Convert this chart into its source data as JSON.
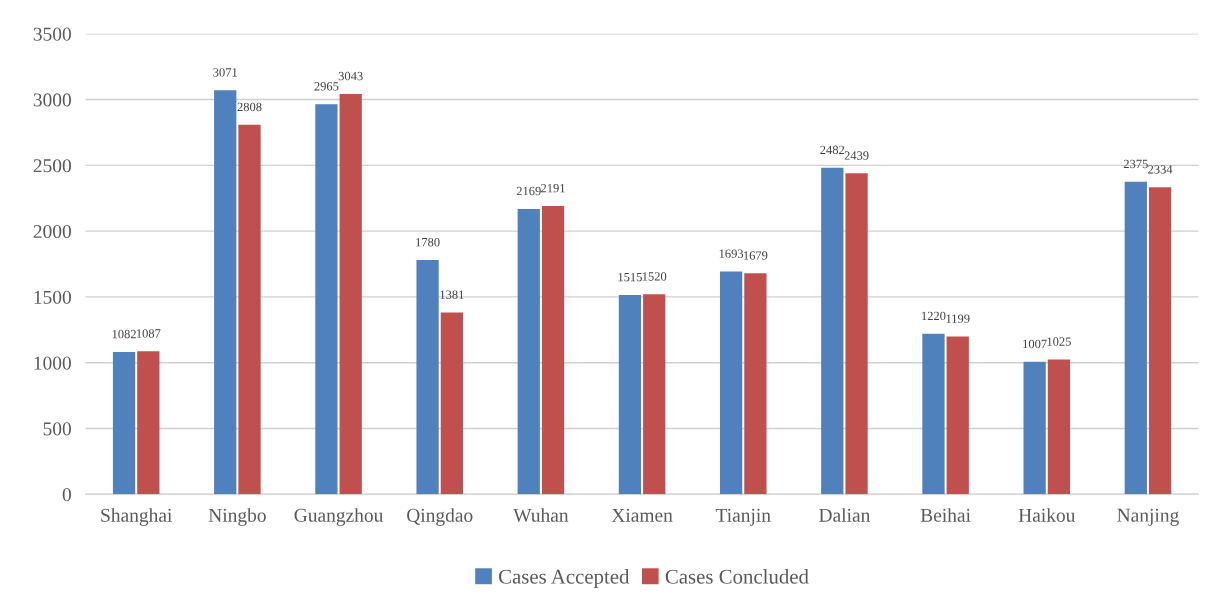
{
  "chart_data": {
    "type": "bar",
    "categories": [
      "Shanghai",
      "Ningbo",
      "Guangzhou",
      "Qingdao",
      "Wuhan",
      "Xiamen",
      "Tianjin",
      "Dalian",
      "Beihai",
      "Haikou",
      "Nanjing"
    ],
    "series": [
      {
        "name": "Cases Accepted",
        "color": "#4f81bd",
        "values": [
          1082,
          3071,
          2965,
          1780,
          2169,
          1515,
          1693,
          2482,
          1220,
          1007,
          2375
        ]
      },
      {
        "name": "Cases Concluded",
        "color": "#c0504d",
        "values": [
          1087,
          2808,
          3043,
          1381,
          2191,
          1520,
          1679,
          2439,
          1199,
          1025,
          2334
        ]
      }
    ],
    "ylim": [
      0,
      3500
    ],
    "yticks": [
      0,
      500,
      1000,
      1500,
      2000,
      2500,
      3000,
      3500
    ],
    "grid": "y",
    "legend": "bottom",
    "data_labels": true
  }
}
